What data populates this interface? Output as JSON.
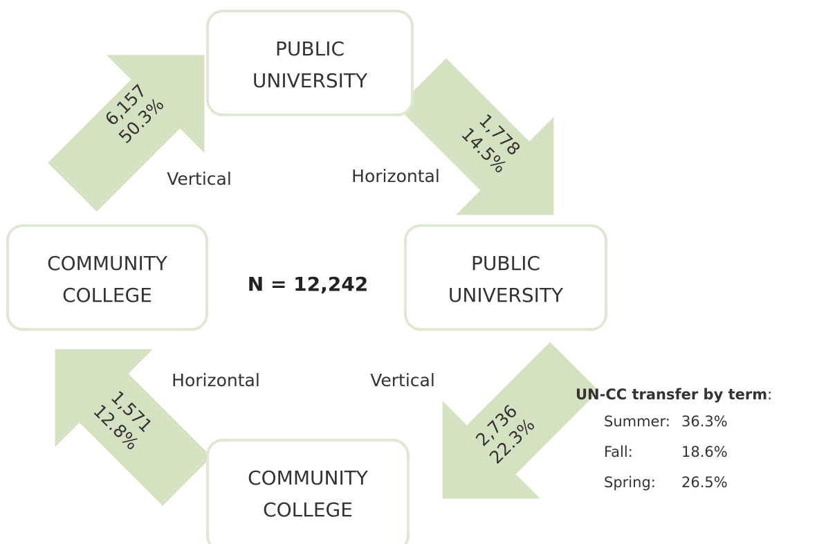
{
  "nodes": [
    {
      "line1": "PUBLIC",
      "line2": "UNIVERSITY"
    },
    {
      "line1": "PUBLIC",
      "line2": "UNIVERSITY"
    },
    {
      "line1": "COMMUNITY",
      "line2": "COLLEGE"
    },
    {
      "line1": "COMMUNITY",
      "line2": "COLLEGE"
    }
  ],
  "arrows": [
    {
      "count": "6,157",
      "percent": "50.3%",
      "label": "Vertical"
    },
    {
      "count": "1,778",
      "percent": "14.5%",
      "label": "Horizontal"
    },
    {
      "count": "2,736",
      "percent": "22.3%",
      "label": "Vertical"
    },
    {
      "count": "1,571",
      "percent": "12.8%",
      "label": "Horizontal"
    }
  ],
  "center": "N = 12,242",
  "side": {
    "title": "UN-CC transfer by term",
    "colon": ":",
    "rows": [
      [
        "Summer:",
        "36.3%"
      ],
      [
        "Fall:",
        "18.6%"
      ],
      [
        "Spring:",
        "26.5%"
      ]
    ]
  }
}
